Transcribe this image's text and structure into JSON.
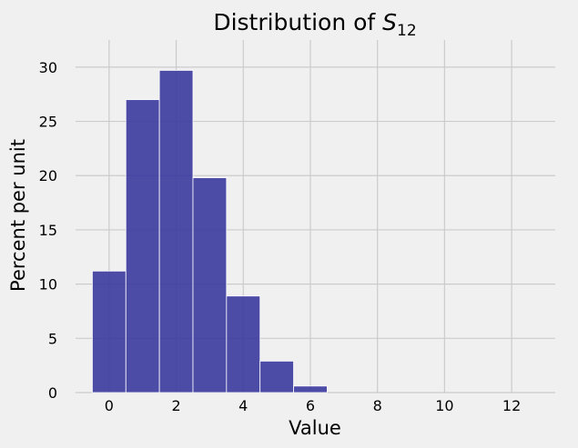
{
  "chart_data": {
    "type": "bar",
    "title": {
      "main": "Distribution of ",
      "symbol": "S",
      "subscript": "12"
    },
    "xlabel": "Value",
    "ylabel": "Percent per unit",
    "xlim": [
      -1,
      13.3
    ],
    "ylim": [
      0,
      32.5
    ],
    "xticks": [
      0,
      2,
      4,
      6,
      8,
      10,
      12
    ],
    "yticks": [
      0,
      5,
      10,
      15,
      20,
      25,
      30
    ],
    "bins": [
      {
        "start": -0.5,
        "end": 0.5,
        "value": 11.2
      },
      {
        "start": 0.5,
        "end": 1.5,
        "value": 27.0
      },
      {
        "start": 1.5,
        "end": 2.5,
        "value": 29.7
      },
      {
        "start": 2.5,
        "end": 3.5,
        "value": 19.8
      },
      {
        "start": 3.5,
        "end": 4.5,
        "value": 8.9
      },
      {
        "start": 4.5,
        "end": 5.5,
        "value": 2.9
      },
      {
        "start": 5.5,
        "end": 6.5,
        "value": 0.6
      }
    ],
    "grid": true,
    "colors": {
      "bar": "#3a3a9e",
      "background": "#f0f0f0",
      "grid": "#cbcbcb"
    }
  }
}
